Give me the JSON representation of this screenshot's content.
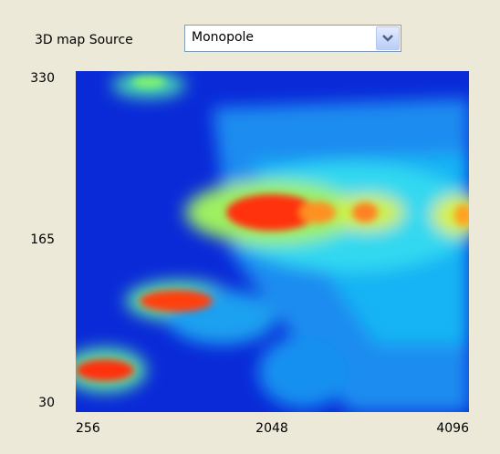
{
  "source_label": "3D map Source",
  "source_value": "Monopole",
  "plot": {
    "yticks": [
      330,
      165,
      30
    ],
    "xticks": [
      256,
      2048,
      4096
    ]
  }
}
